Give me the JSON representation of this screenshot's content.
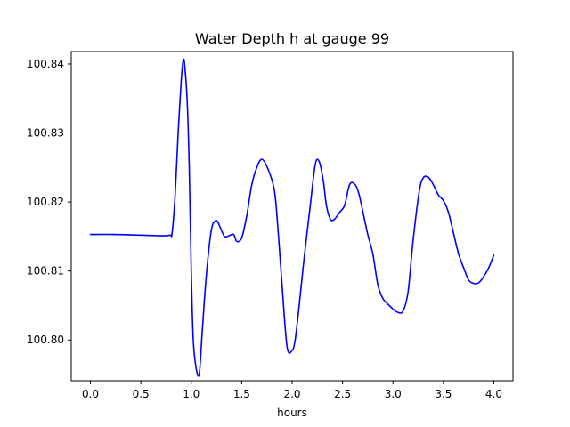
{
  "chart_data": {
    "type": "line",
    "title": "Water Depth h at gauge 99",
    "xlabel": "hours",
    "ylabel": "",
    "xlim": [
      -0.19,
      4.19
    ],
    "ylim": [
      100.7941,
      100.8418
    ],
    "xticks": [
      0.0,
      0.5,
      1.0,
      1.5,
      2.0,
      2.5,
      3.0,
      3.5,
      4.0
    ],
    "xtick_labels": [
      "0.0",
      "0.5",
      "1.0",
      "1.5",
      "2.0",
      "2.5",
      "3.0",
      "3.5",
      "4.0"
    ],
    "yticks": [
      100.8,
      100.81,
      100.82,
      100.83,
      100.84
    ],
    "ytick_labels": [
      "100.80",
      "100.81",
      "100.82",
      "100.83",
      "100.84"
    ],
    "grid": false,
    "legend": "none",
    "series": [
      {
        "color": "#0000ff",
        "x": [
          0.0,
          0.25,
          0.5,
          0.7,
          0.79,
          0.81,
          0.84,
          0.87,
          0.9,
          0.92,
          0.935,
          0.96,
          0.98,
          1.0,
          1.02,
          1.05,
          1.08,
          1.11,
          1.15,
          1.2,
          1.25,
          1.29,
          1.33,
          1.37,
          1.42,
          1.45,
          1.5,
          1.55,
          1.6,
          1.65,
          1.7,
          1.76,
          1.82,
          1.85,
          1.9,
          1.95,
          2.0,
          2.03,
          2.07,
          2.12,
          2.18,
          2.23,
          2.27,
          2.31,
          2.34,
          2.38,
          2.42,
          2.47,
          2.52,
          2.57,
          2.62,
          2.66,
          2.7,
          2.75,
          2.8,
          2.85,
          2.9,
          2.95,
          3.0,
          3.05,
          3.1,
          3.15,
          3.2,
          3.26,
          3.3,
          3.35,
          3.4,
          3.45,
          3.5,
          3.55,
          3.6,
          3.65,
          3.7,
          3.75,
          3.8,
          3.85,
          3.9,
          3.95,
          4.0
        ],
        "values": [
          100.8153,
          100.8153,
          100.8152,
          100.8151,
          100.8152,
          100.8155,
          100.821,
          100.83,
          100.8375,
          100.8405,
          100.8398,
          100.8345,
          100.825,
          100.81,
          100.8,
          100.7958,
          100.7952,
          100.8015,
          100.8095,
          100.816,
          100.8173,
          100.8162,
          100.815,
          100.8151,
          100.8153,
          100.8143,
          100.8148,
          100.818,
          100.8225,
          100.825,
          100.8262,
          100.8248,
          100.822,
          100.818,
          100.808,
          100.799,
          100.7985,
          100.8,
          100.805,
          100.812,
          100.8195,
          100.8255,
          100.8258,
          100.823,
          100.8195,
          100.8175,
          100.8175,
          100.8185,
          100.8195,
          100.8225,
          100.8226,
          100.8213,
          100.8187,
          100.8153,
          100.8125,
          100.808,
          100.806,
          100.8052,
          100.8045,
          100.804,
          100.8042,
          100.807,
          100.8145,
          100.8215,
          100.8235,
          100.8236,
          100.8225,
          100.821,
          100.8202,
          100.8185,
          100.8155,
          100.8125,
          100.8105,
          100.8087,
          100.8082,
          100.8083,
          100.8092,
          100.8105,
          100.8123
        ]
      }
    ]
  }
}
